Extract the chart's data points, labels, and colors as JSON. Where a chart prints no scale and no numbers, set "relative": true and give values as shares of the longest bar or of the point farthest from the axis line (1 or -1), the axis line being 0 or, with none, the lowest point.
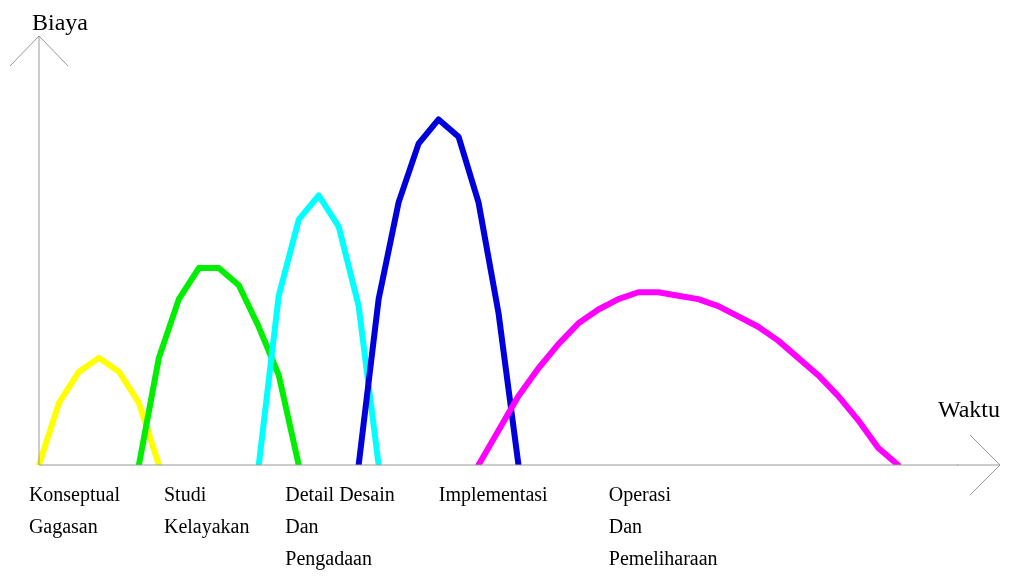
{
  "chart_data": {
    "type": "line",
    "relative": true,
    "xlabel": "Waktu",
    "ylabel": "Biaya",
    "grid": false,
    "legend": false,
    "categories": [
      null,
      null,
      null,
      null,
      null,
      null,
      null,
      null,
      null,
      null,
      null,
      null,
      null,
      null,
      null,
      null,
      null,
      null,
      null,
      null,
      null,
      null,
      null,
      null,
      null,
      null,
      null,
      null,
      null,
      null,
      null,
      null,
      null,
      null,
      null,
      null,
      null,
      null,
      null,
      null,
      null,
      null,
      null,
      null,
      null,
      null,
      null
    ],
    "series": [
      {
        "color": "#ffff00",
        "values": [
          0,
          0.18,
          0.27,
          0.31,
          0.27,
          0.18,
          0,
          null,
          null,
          null,
          null,
          null,
          null,
          null,
          null,
          null,
          null,
          null,
          null,
          null,
          null,
          null,
          null,
          null,
          null,
          null,
          null,
          null,
          null,
          null,
          null,
          null,
          null,
          null,
          null,
          null,
          null,
          null,
          null,
          null,
          null,
          null,
          null,
          null,
          null,
          null,
          null
        ]
      },
      {
        "color": "#00ee00",
        "values": [
          null,
          null,
          null,
          null,
          null,
          0,
          0.31,
          0.48,
          0.57,
          0.57,
          0.52,
          0.4,
          0.26,
          0,
          null,
          null,
          null,
          null,
          null,
          null,
          null,
          null,
          null,
          null,
          null,
          null,
          null,
          null,
          null,
          null,
          null,
          null,
          null,
          null,
          null,
          null,
          null,
          null,
          null,
          null,
          null,
          null,
          null,
          null,
          null,
          null,
          null
        ]
      },
      {
        "color": "#00ffff",
        "values": [
          null,
          null,
          null,
          null,
          null,
          null,
          null,
          null,
          null,
          null,
          null,
          0,
          0.49,
          0.71,
          0.78,
          0.69,
          0.46,
          0,
          null,
          null,
          null,
          null,
          null,
          null,
          null,
          null,
          null,
          null,
          null,
          null,
          null,
          null,
          null,
          null,
          null,
          null,
          null,
          null,
          null,
          null,
          null,
          null,
          null,
          null,
          null,
          null,
          null
        ]
      },
      {
        "color": "#0000dd",
        "values": [
          null,
          null,
          null,
          null,
          null,
          null,
          null,
          null,
          null,
          null,
          null,
          null,
          null,
          null,
          null,
          null,
          0,
          0.48,
          0.76,
          0.93,
          1,
          0.95,
          0.76,
          0.44,
          0,
          null,
          null,
          null,
          null,
          null,
          null,
          null,
          null,
          null,
          null,
          null,
          null,
          null,
          null,
          null,
          null,
          null,
          null,
          null,
          null,
          null,
          null
        ]
      },
      {
        "color": "#ff00ff",
        "values": [
          null,
          null,
          null,
          null,
          null,
          null,
          null,
          null,
          null,
          null,
          null,
          null,
          null,
          null,
          null,
          null,
          null,
          null,
          null,
          null,
          null,
          null,
          0,
          0.1,
          0.2,
          0.28,
          0.35,
          0.41,
          0.45,
          0.48,
          0.5,
          0.5,
          0.49,
          0.48,
          0.46,
          0.43,
          0.4,
          0.36,
          0.31,
          0.26,
          0.2,
          0.13,
          0.05,
          0,
          null,
          null,
          null
        ]
      }
    ],
    "annotations": [
      "Konseptual\nGagasan",
      "Studi\nKelayakan",
      "Detail Desain\nDan\nPengadaan",
      "Implementasi",
      "Operasi\nDan\nPemeliharaan"
    ]
  }
}
